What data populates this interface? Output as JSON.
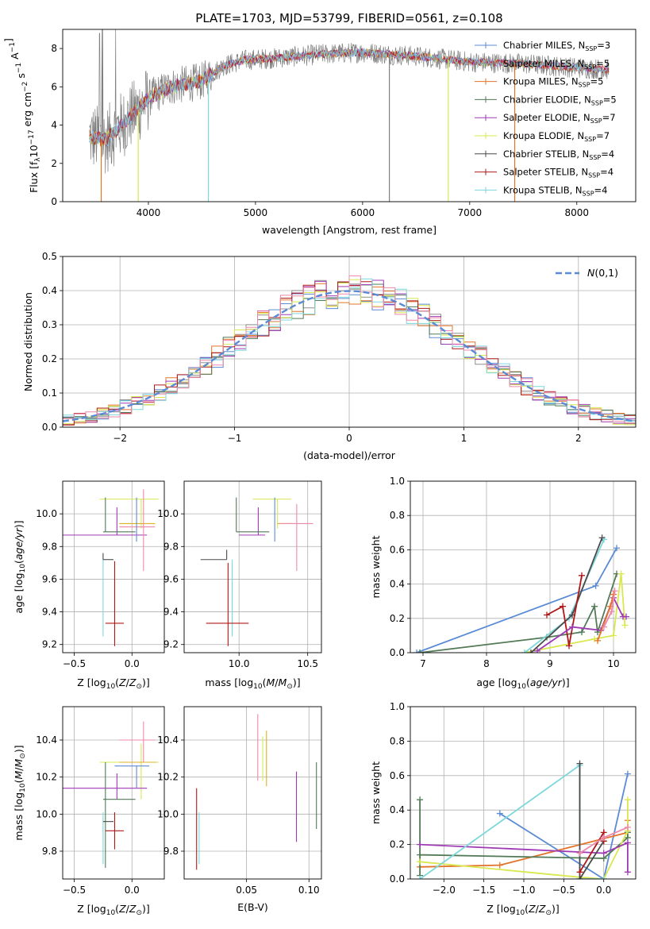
{
  "figure": {
    "title": "PLATE=1703, MJD=53799, FIBERID=0561, z=0.108"
  },
  "colors": {
    "chabrier_miles": "#5b8bd4",
    "salpeter_miles": "#8f8f8f",
    "kroupa_miles": "#e2742a",
    "chabrier_elodie": "#527a57",
    "salpeter_elodie": "#9f3ab5",
    "kroupa_elodie": "#d9e84f",
    "chabrier_stelib": "#4a4a4a",
    "salpeter_stelib": "#b01818",
    "kroupa_stelib": "#7dd8dc",
    "extra_pink": "#ee88aa",
    "extra_gold": "#e0b020",
    "gauss": "#5b8bd4",
    "data": "#808080"
  },
  "legend_spectrum": [
    {
      "name": "Chabrier MILES",
      "nssp": "3"
    },
    {
      "name": "Salpeter MILES",
      "nssp": "5"
    },
    {
      "name": "Kroupa MILES",
      "nssp": "5"
    },
    {
      "name": "Chabrier ELODIE",
      "nssp": "5"
    },
    {
      "name": "Salpeter ELODIE",
      "nssp": "7"
    },
    {
      "name": "Kroupa ELODIE",
      "nssp": "7"
    },
    {
      "name": "Chabrier STELIB",
      "nssp": "4"
    },
    {
      "name": "Salpeter STELIB",
      "nssp": "4"
    },
    {
      "name": "Kroupa STELIB",
      "nssp": "4"
    }
  ],
  "chart_data": [
    {
      "id": "spectrum",
      "type": "line",
      "xlabel": "wavelength [Angstrom, rest frame]",
      "ylabel_parts": [
        "Flux [f",
        "λ",
        "10",
        "−17",
        " erg cm",
        "−2",
        " s",
        "−1",
        " A",
        "−1",
        "]"
      ],
      "xlim": [
        3200,
        8550
      ],
      "ylim": [
        0,
        9
      ],
      "xticks": [
        4000,
        5000,
        6000,
        7000,
        8000
      ],
      "yticks": [
        0,
        2,
        4,
        6,
        8
      ],
      "grid": false,
      "legend_position": "right",
      "continuum_anchors": {
        "x": [
          3450,
          3600,
          3750,
          3900,
          4000,
          4200,
          4500,
          4700,
          4900,
          5200,
          5600,
          6000,
          6500,
          7000,
          7500,
          8000,
          8300
        ],
        "y": [
          3.4,
          3.2,
          4.0,
          4.8,
          5.4,
          6.0,
          6.3,
          7.1,
          7.4,
          7.5,
          7.7,
          7.8,
          7.6,
          7.3,
          7.2,
          7.0,
          6.9
        ]
      },
      "drops": [
        {
          "x": 3560,
          "color": "kroupa_miles"
        },
        {
          "x": 3905,
          "color": "kroupa_elodie"
        },
        {
          "x": 4560,
          "color": "kroupa_stelib"
        },
        {
          "x": 6250,
          "color": "data"
        },
        {
          "x": 6800,
          "color": "kroupa_elodie"
        },
        {
          "x": 7420,
          "color": "kroupa_miles"
        }
      ]
    },
    {
      "id": "residual-hist",
      "type": "step",
      "xlabel": "(data-model)/error",
      "ylabel": "Normed distribution",
      "xlim": [
        -2.5,
        2.5
      ],
      "ylim": [
        0,
        0.5
      ],
      "xticks": [
        -2,
        -1,
        0,
        1,
        2
      ],
      "yticks": [
        0,
        0.1,
        0.2,
        0.3,
        0.4,
        0.5
      ],
      "grid": true,
      "legend": "N(0,1)",
      "legend_position": "top-right",
      "bins": 50
    },
    {
      "id": "age-vs-z",
      "type": "errorbar",
      "xlabel": "Z [log10(Z/Z⊙)]",
      "ylabel": "age [log10(age/yr)]",
      "xlim": [
        -0.6,
        0.28
      ],
      "ylim": [
        9.15,
        10.2
      ],
      "xticks": [
        -0.5,
        0.0
      ],
      "yticks": [
        9.2,
        9.4,
        9.6,
        9.8,
        10.0
      ],
      "grid": true,
      "points": [
        {
          "x": 0.08,
          "y": 10.09,
          "xl": 0.36,
          "xh": 0.15,
          "yl": 0.18,
          "yh": 0.0,
          "color": "kroupa_elodie"
        },
        {
          "x": -0.13,
          "y": 9.87,
          "xl": 0.47,
          "xh": 0.26,
          "yl": 0.0,
          "yh": 0.17,
          "color": "salpeter_elodie"
        },
        {
          "x": 0.1,
          "y": 9.94,
          "xl": 0.21,
          "xh": 0.1,
          "yl": 0.0,
          "yh": 0.0,
          "color": "extra_gold"
        },
        {
          "x": 0.1,
          "y": 9.92,
          "xl": 0.21,
          "xh": 0.1,
          "yl": 0.27,
          "yh": 0.23,
          "color": "extra_pink"
        },
        {
          "x": -0.23,
          "y": 9.89,
          "xl": 0.02,
          "xh": 0.26,
          "yl": 0.0,
          "yh": 0.21,
          "color": "chabrier_elodie"
        },
        {
          "x": 0.04,
          "y": 9.93,
          "xl": 0.0,
          "xh": 0.0,
          "yl": 0.1,
          "yh": 0.17,
          "color": "chabrier_miles"
        },
        {
          "x": -0.25,
          "y": 9.72,
          "xl": 0.0,
          "xh": 0.0,
          "yl": 0.47,
          "yh": 0.0,
          "color": "kroupa_stelib"
        },
        {
          "x": -0.25,
          "y": 9.72,
          "xl": 0.0,
          "xh": 0.09,
          "yl": 0.0,
          "yh": 0.04,
          "color": "chabrier_stelib"
        },
        {
          "x": -0.15,
          "y": 9.33,
          "xl": 0.08,
          "xh": 0.08,
          "yl": 0.14,
          "yh": 0.38,
          "color": "salpeter_stelib"
        }
      ]
    },
    {
      "id": "age-vs-mass",
      "type": "errorbar",
      "xlabel": "mass [log10(M/M⊙)]",
      "ylabel": "",
      "xlim": [
        9.6,
        10.6
      ],
      "ylim": [
        9.15,
        10.2
      ],
      "xticks": [
        10.0,
        10.5
      ],
      "yticks": [
        9.2,
        9.4,
        9.6,
        9.8,
        10.0
      ],
      "grid": true,
      "points": [
        {
          "x": 10.28,
          "y": 10.09,
          "xl": 0.18,
          "xh": 0.1,
          "yl": 0.18,
          "yh": 0.0,
          "color": "kroupa_elodie"
        },
        {
          "x": 10.14,
          "y": 9.87,
          "xl": 0.14,
          "xh": 0.05,
          "yl": 0.0,
          "yh": 0.17,
          "color": "salpeter_elodie"
        },
        {
          "x": 10.4,
          "y": 9.94,
          "xl": 0.12,
          "xh": 0.0,
          "yl": 0.0,
          "yh": 0.0,
          "color": "extra_gold"
        },
        {
          "x": 10.42,
          "y": 9.94,
          "xl": 0.12,
          "xh": 0.12,
          "yl": 0.29,
          "yh": 0.12,
          "color": "extra_pink"
        },
        {
          "x": 9.98,
          "y": 9.89,
          "xl": 0.0,
          "xh": 0.24,
          "yl": 0.0,
          "yh": 0.21,
          "color": "chabrier_elodie"
        },
        {
          "x": 10.26,
          "y": 9.93,
          "xl": 0.0,
          "xh": 0.0,
          "yl": 0.1,
          "yh": 0.17,
          "color": "chabrier_miles"
        },
        {
          "x": 9.95,
          "y": 9.72,
          "xl": 0.0,
          "xh": 0.0,
          "yl": 0.47,
          "yh": 0.0,
          "color": "kroupa_stelib"
        },
        {
          "x": 9.91,
          "y": 9.72,
          "xl": 0.19,
          "xh": 0.0,
          "yl": 0.0,
          "yh": 0.06,
          "color": "chabrier_stelib"
        },
        {
          "x": 9.92,
          "y": 9.33,
          "xl": 0.16,
          "xh": 0.15,
          "yl": 0.14,
          "yh": 0.37,
          "color": "salpeter_stelib"
        }
      ]
    },
    {
      "id": "mass-weight-vs-age",
      "type": "line",
      "xlabel": "age [log10(age/yr)]",
      "ylabel": "mass weight",
      "xlim": [
        6.8,
        10.35
      ],
      "ylim": [
        0,
        1
      ],
      "xticks": [
        7,
        8,
        9,
        10
      ],
      "yticks": [
        0.0,
        0.2,
        0.4,
        0.6,
        0.8,
        1.0
      ],
      "grid": true,
      "series": [
        {
          "color": "chabrier_miles",
          "x": [
            6.9,
            9.72,
            10.05
          ],
          "y": [
            0.0,
            0.39,
            0.61
          ]
        },
        {
          "color": "chabrier_elodie",
          "x": [
            6.95,
            8.95,
            9.5,
            9.7,
            9.75,
            10.05
          ],
          "y": [
            0.0,
            0.09,
            0.12,
            0.27,
            0.12,
            0.46
          ]
        },
        {
          "color": "kroupa_elodie",
          "x": [
            8.6,
            9.7,
            10.0,
            10.12,
            10.18
          ],
          "y": [
            0.0,
            0.08,
            0.1,
            0.46,
            0.16
          ]
        },
        {
          "color": "kroupa_stelib",
          "x": [
            8.6,
            9.3,
            9.85
          ],
          "y": [
            0.0,
            0.2,
            0.66
          ]
        },
        {
          "color": "chabrier_stelib",
          "x": [
            8.7,
            9.35,
            9.82
          ],
          "y": [
            0.0,
            0.22,
            0.67
          ]
        },
        {
          "color": "salpeter_stelib",
          "x": [
            8.95,
            9.2,
            9.3,
            9.5
          ],
          "y": [
            0.22,
            0.27,
            0.04,
            0.45
          ]
        },
        {
          "color": "salpeter_elodie",
          "x": [
            8.8,
            9.35,
            9.8,
            10.0,
            10.15,
            10.2
          ],
          "y": [
            0.01,
            0.15,
            0.13,
            0.32,
            0.21,
            0.21
          ]
        },
        {
          "color": "kroupa_miles",
          "x": [
            9.75,
            9.95,
            10.0
          ],
          "y": [
            0.07,
            0.27,
            0.34
          ]
        },
        {
          "color": "extra_pink",
          "x": [
            9.85,
            9.97,
            10.02
          ],
          "y": [
            0.15,
            0.24,
            0.36
          ]
        }
      ]
    },
    {
      "id": "mass-vs-z",
      "type": "errorbar",
      "xlabel": "Z [log10(Z/Z⊙)]",
      "ylabel": "mass [log10(M/M⊙)]",
      "xlim": [
        -0.6,
        0.28
      ],
      "ylim": [
        9.65,
        10.58
      ],
      "xticks": [
        -0.5,
        0.0
      ],
      "yticks": [
        9.8,
        10.0,
        10.2,
        10.4
      ],
      "grid": true,
      "points": [
        {
          "x": 0.08,
          "y": 10.28,
          "xl": 0.36,
          "xh": 0.15,
          "yl": 0.2,
          "yh": 0.1,
          "color": "kroupa_elodie"
        },
        {
          "x": -0.13,
          "y": 10.14,
          "xl": 0.47,
          "xh": 0.26,
          "yl": 0.06,
          "yh": 0.08,
          "color": "salpeter_elodie"
        },
        {
          "x": 0.1,
          "y": 10.28,
          "xl": 0.21,
          "xh": 0.11,
          "yl": 0.0,
          "yh": 0.0,
          "color": "extra_gold"
        },
        {
          "x": 0.1,
          "y": 10.4,
          "xl": 0.21,
          "xh": 0.1,
          "yl": 0.12,
          "yh": 0.1,
          "color": "extra_pink"
        },
        {
          "x": -0.23,
          "y": 10.08,
          "xl": 0.02,
          "xh": 0.26,
          "yl": 0.37,
          "yh": 0.2,
          "color": "chabrier_elodie"
        },
        {
          "x": 0.04,
          "y": 10.26,
          "xl": 0.19,
          "xh": 0.11,
          "yl": 0.12,
          "yh": 0.0,
          "color": "chabrier_miles"
        },
        {
          "x": -0.25,
          "y": 9.96,
          "xl": 0.0,
          "xh": 0.02,
          "yl": 0.23,
          "yh": 0.05,
          "color": "kroupa_stelib"
        },
        {
          "x": -0.25,
          "y": 9.96,
          "xl": 0.0,
          "xh": 0.09,
          "yl": 0.0,
          "yh": 0.0,
          "color": "chabrier_stelib"
        },
        {
          "x": -0.15,
          "y": 9.91,
          "xl": 0.08,
          "xh": 0.08,
          "yl": 0.1,
          "yh": 0.1,
          "color": "salpeter_stelib"
        }
      ]
    },
    {
      "id": "mass-vs-ebv",
      "type": "errorbar",
      "xlabel": "E(B-V)",
      "ylabel": "",
      "xlim": [
        0.0,
        0.11
      ],
      "ylim": [
        9.65,
        10.58
      ],
      "xticks": [
        0.05,
        0.1
      ],
      "yticks": [
        9.8,
        10.0,
        10.2,
        10.4
      ],
      "grid": true,
      "points": [
        {
          "x": 0.01,
          "y": 9.92,
          "xl": 0.0,
          "xh": 0.0,
          "yl": 0.22,
          "yh": 0.22,
          "color": "salpeter_stelib"
        },
        {
          "x": 0.012,
          "y": 9.87,
          "xl": 0.0,
          "xh": 0.0,
          "yl": 0.14,
          "yh": 0.14,
          "color": "kroupa_stelib"
        },
        {
          "x": 0.059,
          "y": 10.36,
          "xl": 0.0,
          "xh": 0.0,
          "yl": 0.18,
          "yh": 0.18,
          "color": "extra_pink"
        },
        {
          "x": 0.063,
          "y": 10.3,
          "xl": 0.0,
          "xh": 0.0,
          "yl": 0.12,
          "yh": 0.12,
          "color": "kroupa_elodie"
        },
        {
          "x": 0.066,
          "y": 10.3,
          "xl": 0.0,
          "xh": 0.0,
          "yl": 0.15,
          "yh": 0.15,
          "color": "extra_gold"
        },
        {
          "x": 0.09,
          "y": 10.04,
          "xl": 0.0,
          "xh": 0.0,
          "yl": 0.19,
          "yh": 0.19,
          "color": "salpeter_elodie"
        },
        {
          "x": 0.106,
          "y": 10.1,
          "xl": 0.0,
          "xh": 0.0,
          "yl": 0.18,
          "yh": 0.18,
          "color": "chabrier_elodie"
        }
      ]
    },
    {
      "id": "mass-weight-vs-z",
      "type": "line",
      "xlabel": "Z [log10(Z/Z⊙)]",
      "ylabel": "mass weight",
      "xlim": [
        -2.42,
        0.4
      ],
      "ylim": [
        0,
        1
      ],
      "xticks": [
        -2.0,
        -1.5,
        -1.0,
        -0.5,
        0.0
      ],
      "yticks": [
        0.0,
        0.2,
        0.4,
        0.6,
        0.8,
        1.0
      ],
      "grid": true,
      "series": [
        {
          "color": "chabrier_miles",
          "x": [
            -1.3,
            0.0,
            0.3
          ],
          "y": [
            0.38,
            0.0,
            0.61
          ]
        },
        {
          "color": "kroupa_miles",
          "x": [
            -2.3,
            -1.3,
            0.3,
            0.3
          ],
          "y": [
            0.07,
            0.08,
            0.27,
            0.34
          ]
        },
        {
          "color": "chabrier_elodie",
          "x": [
            -2.3,
            -2.3,
            -2.3,
            0.0,
            0.3,
            0.3
          ],
          "y": [
            0.46,
            0.02,
            0.14,
            0.12,
            0.24,
            0.27
          ]
        },
        {
          "color": "kroupa_elodie",
          "x": [
            -2.3,
            -0.3,
            0.0,
            0.3,
            0.3
          ],
          "y": [
            0.1,
            0.01,
            0.0,
            0.28,
            0.46
          ]
        },
        {
          "color": "salpeter_elodie",
          "x": [
            -2.3,
            0.0,
            0.3,
            0.3
          ],
          "y": [
            0.2,
            0.15,
            0.21,
            0.04
          ]
        },
        {
          "color": "kroupa_stelib",
          "x": [
            -2.3,
            -0.3,
            -0.3,
            0.0
          ],
          "y": [
            0.0,
            0.66,
            0.0,
            0.0
          ]
        },
        {
          "color": "chabrier_stelib",
          "x": [
            -0.3,
            -0.3,
            0.0
          ],
          "y": [
            0.67,
            0.0,
            0.22
          ]
        },
        {
          "color": "salpeter_stelib",
          "x": [
            -0.3,
            0.0,
            0.0
          ],
          "y": [
            0.04,
            0.27,
            0.22
          ]
        },
        {
          "color": "extra_pink",
          "x": [
            -0.3,
            0.0,
            0.3
          ],
          "y": [
            0.15,
            0.24,
            0.3
          ]
        }
      ]
    }
  ]
}
